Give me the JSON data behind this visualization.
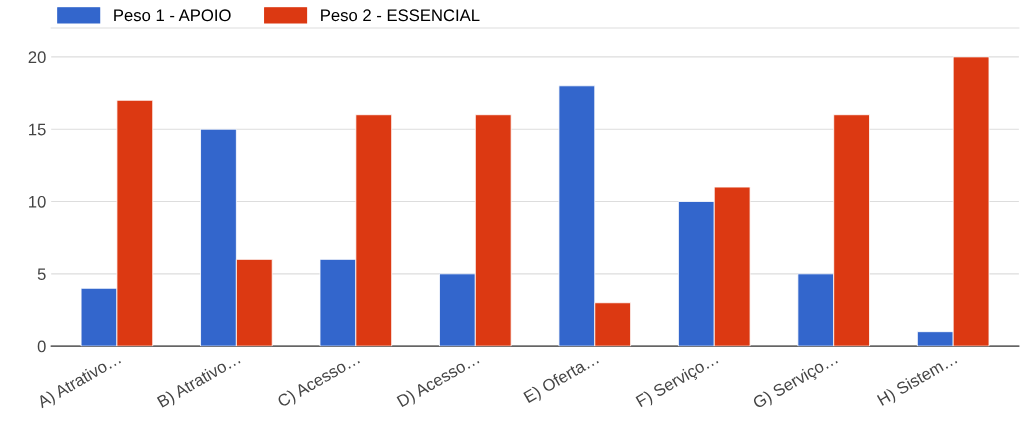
{
  "chart_data": {
    "type": "bar",
    "categories": [
      "A) Atrativo…",
      "B) Atrativo…",
      "C) Acesso…",
      "D) Acesso…",
      "E) Oferta…",
      "F) Serviço…",
      "G) Serviço…",
      "H) Sistem…"
    ],
    "series": [
      {
        "name": "Peso 1 - APOIO",
        "color": "#3366cc",
        "values": [
          4,
          15,
          6,
          5,
          18,
          10,
          5,
          1
        ]
      },
      {
        "name": "Peso 2 - ESSENCIAL",
        "color": "#dc3912",
        "values": [
          17,
          6,
          16,
          16,
          3,
          11,
          16,
          20
        ]
      }
    ],
    "ylim": [
      0,
      22
    ],
    "yticks": [
      0,
      5,
      10,
      15,
      20
    ],
    "grid": "y",
    "legend": "top left"
  }
}
